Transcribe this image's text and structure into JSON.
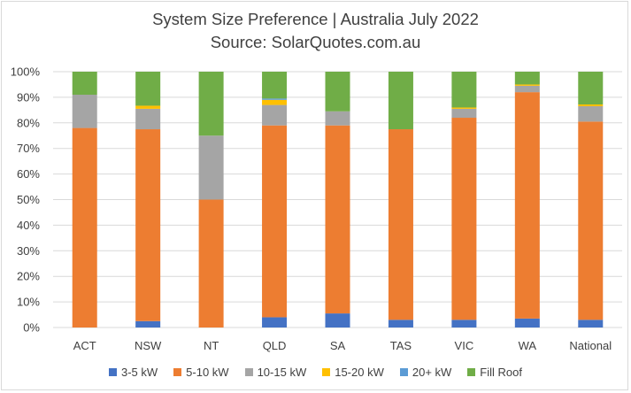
{
  "chart_data": {
    "type": "bar",
    "stacked": true,
    "title": "System Size Preference  | Australia July 2022",
    "subtitle": "Source: SolarQuotes.com.au",
    "categories": [
      "ACT",
      "NSW",
      "NT",
      "QLD",
      "SA",
      "TAS",
      "VIC",
      "WA",
      "National"
    ],
    "ylim": [
      0,
      100
    ],
    "yticks": [
      "0%",
      "10%",
      "20%",
      "30%",
      "40%",
      "50%",
      "60%",
      "70%",
      "80%",
      "90%",
      "100%"
    ],
    "grid": true,
    "legend_position": "bottom",
    "series": [
      {
        "name": "3-5 kW",
        "color": "#4472c4",
        "values": [
          0,
          2.5,
          0,
          4,
          5.5,
          3,
          3,
          3.5,
          3
        ]
      },
      {
        "name": "5-10 kW",
        "color": "#ed7d31",
        "values": [
          78,
          75,
          50,
          75,
          73.5,
          74.5,
          79,
          88.5,
          77.5
        ]
      },
      {
        "name": "10-15 kW",
        "color": "#a5a5a5",
        "values": [
          13,
          8,
          25,
          8,
          5.5,
          0,
          3.5,
          2.5,
          6
        ]
      },
      {
        "name": "15-20 kW",
        "color": "#ffc000",
        "values": [
          0,
          1.2,
          0,
          2,
          0,
          0,
          0.5,
          0.5,
          0.7
        ]
      },
      {
        "name": "20+ kW",
        "color": "#5b9bd5",
        "values": [
          0,
          0,
          0,
          0.5,
          0,
          0,
          0,
          0,
          0
        ]
      },
      {
        "name": "Fill Roof",
        "color": "#70ad47",
        "values": [
          9,
          13.3,
          25,
          10.5,
          15.5,
          22.5,
          14,
          5,
          12.8
        ]
      }
    ]
  }
}
